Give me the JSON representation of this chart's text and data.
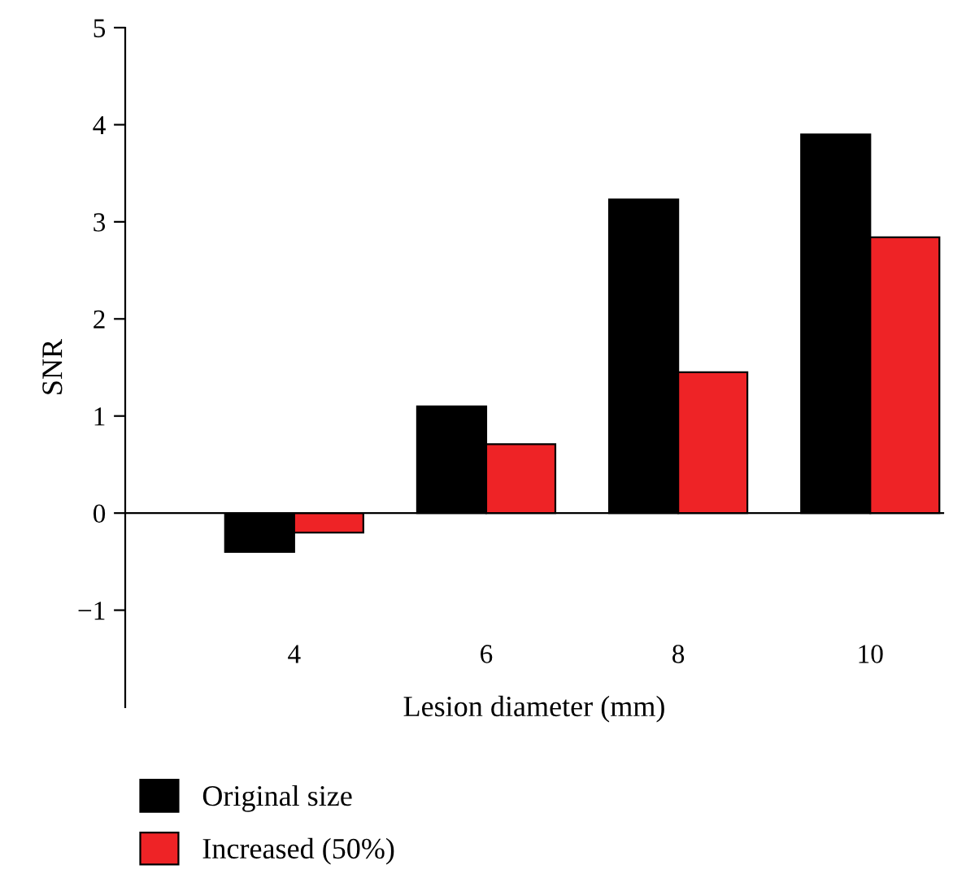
{
  "chart_data": {
    "type": "bar",
    "xlabel": "Lesion diameter (mm)",
    "ylabel": "SNR",
    "categories": [
      "4",
      "6",
      "8",
      "10"
    ],
    "series": [
      {
        "name": "Original size",
        "color": "#000000",
        "values": [
          -0.4,
          1.1,
          3.23,
          3.9
        ]
      },
      {
        "name": "Increased (50%)",
        "color": "#ee2326",
        "values": [
          -0.2,
          0.71,
          1.45,
          2.84
        ]
      }
    ],
    "ylim": [
      -2,
      5
    ],
    "yticks": [
      {
        "value": -1,
        "label": "−1"
      },
      0,
      1,
      2,
      3,
      4,
      5
    ],
    "legend": "bottom left"
  }
}
